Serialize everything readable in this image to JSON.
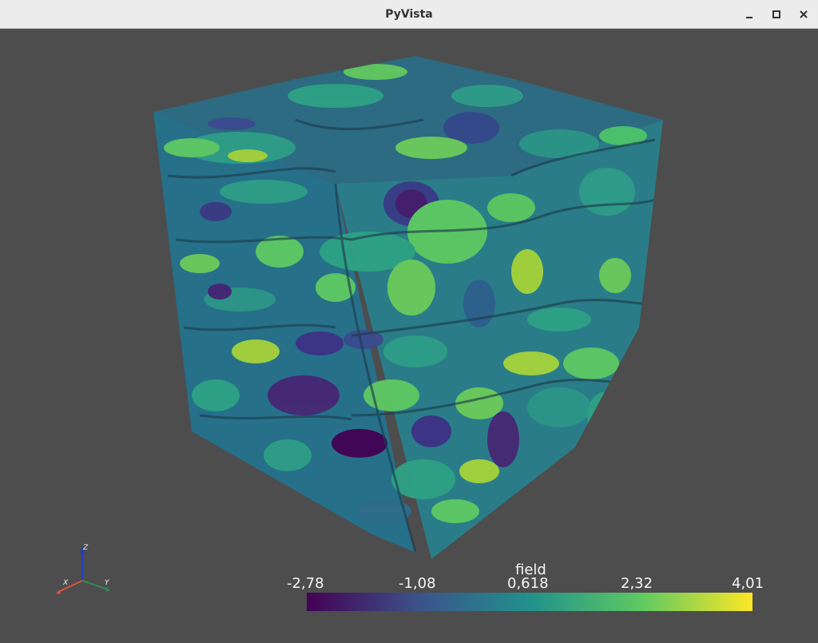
{
  "window": {
    "title": "PyVista"
  },
  "scalar_bar": {
    "title": "field",
    "ticks": [
      "-2,78",
      "-1,08",
      "0,618",
      "2,32",
      "4,01"
    ],
    "colormap": "viridis",
    "colors": [
      "#440154",
      "#3b528b",
      "#21918c",
      "#5ec962",
      "#fde725"
    ]
  },
  "axes_widget": {
    "x_label": "X",
    "y_label": "Y",
    "z_label": "Z",
    "x_color": "#e0523a",
    "y_color": "#2e8b57",
    "z_color": "#1f3fbf"
  },
  "scene": {
    "background": "#4d4d4d",
    "object": "isosurface-cube"
  }
}
